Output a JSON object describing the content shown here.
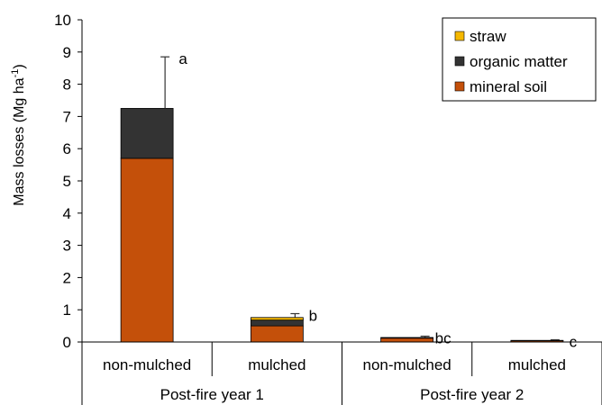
{
  "chart_data": {
    "type": "bar",
    "stacked": true,
    "ylabel": "Mass losses (Mg ha",
    "ylabel_sup": "-1",
    "ylabel_close": ")",
    "ylim": [
      0,
      10
    ],
    "yticks": [
      "0",
      "1",
      "2",
      "3",
      "4",
      "5",
      "6",
      "7",
      "8",
      "9",
      "10"
    ],
    "categories": [
      "non-mulched",
      "mulched",
      "non-mulched",
      "mulched"
    ],
    "groups": [
      {
        "label": "Post-fire year 1"
      },
      {
        "label": "Post-fire year 2"
      }
    ],
    "series": [
      {
        "name": "mineral soil",
        "color": "#c4500a",
        "values": [
          5.7,
          0.5,
          0.12,
          0.04
        ]
      },
      {
        "name": "organic matter",
        "color": "#333333",
        "values": [
          1.55,
          0.18,
          0.02,
          0.01
        ]
      },
      {
        "name": "straw",
        "color": "#f5b800",
        "values": [
          0.0,
          0.08,
          0.0,
          0.0
        ]
      }
    ],
    "error_bars": [
      8.85,
      0.88,
      0.18,
      0.07
    ],
    "significance": [
      "a",
      "b",
      "bc",
      "c"
    ],
    "legend": {
      "position": "top-right",
      "entries": [
        "straw",
        "organic matter",
        "mineral soil"
      ]
    },
    "grid": false
  }
}
